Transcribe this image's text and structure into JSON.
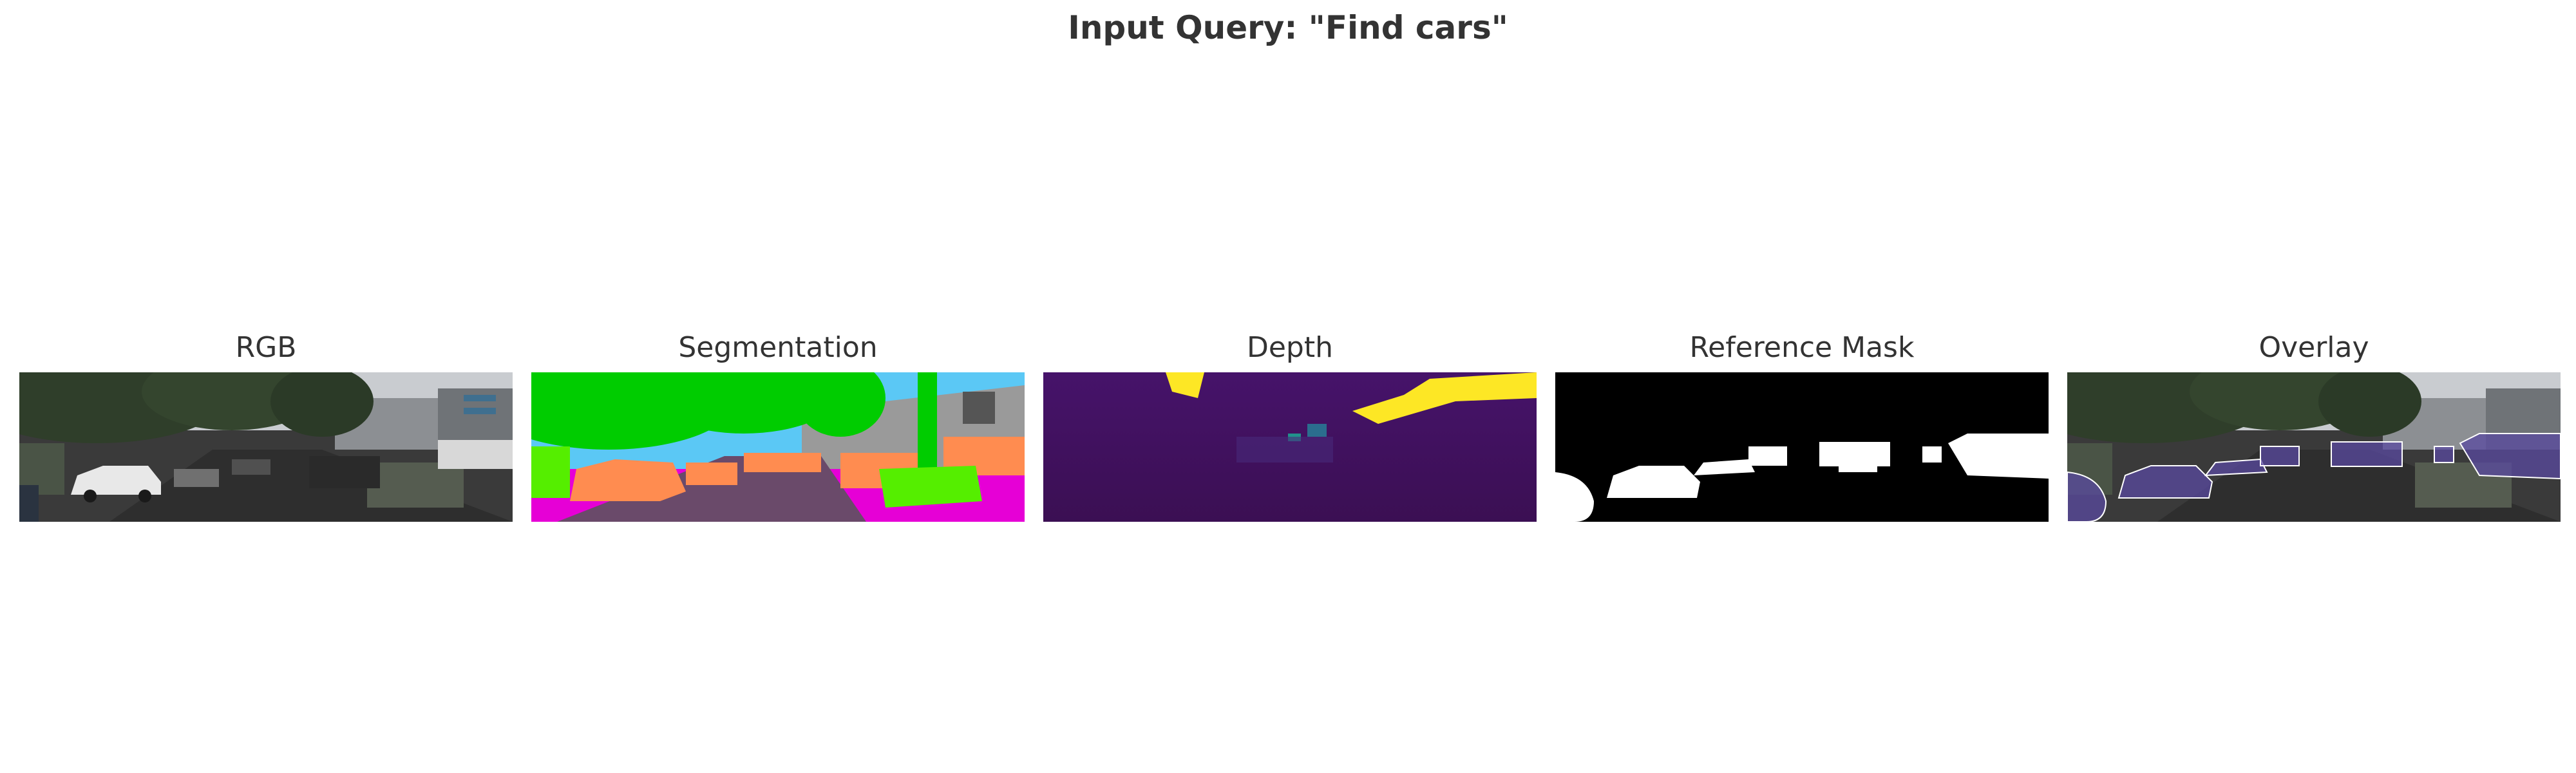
{
  "figure": {
    "title": "Input Query: \"Find cars\""
  },
  "panels": [
    {
      "id": "rgb",
      "label": "RGB"
    },
    {
      "id": "segmentation",
      "label": "Segmentation"
    },
    {
      "id": "depth",
      "label": "Depth"
    },
    {
      "id": "reference-mask",
      "label": "Reference Mask"
    },
    {
      "id": "overlay",
      "label": "Overlay"
    }
  ],
  "colors": {
    "sky": "#c9ccd0",
    "tree": "#2f3e2a",
    "road": "#3b3b3b",
    "seg_vegetation": "#00cc00",
    "seg_sky": "#5bc8f5",
    "seg_building": "#9a9a9a",
    "seg_car": "#ff8c50",
    "seg_road": "#6a4a6a",
    "seg_sidewalk": "#e600d6",
    "seg_hedge": "#55ee00",
    "depth_near": "#3b0f53",
    "depth_far": "#fde725",
    "mask_bg": "#000000",
    "mask_fg": "#ffffff",
    "overlay_car": "#5a4aa0"
  }
}
